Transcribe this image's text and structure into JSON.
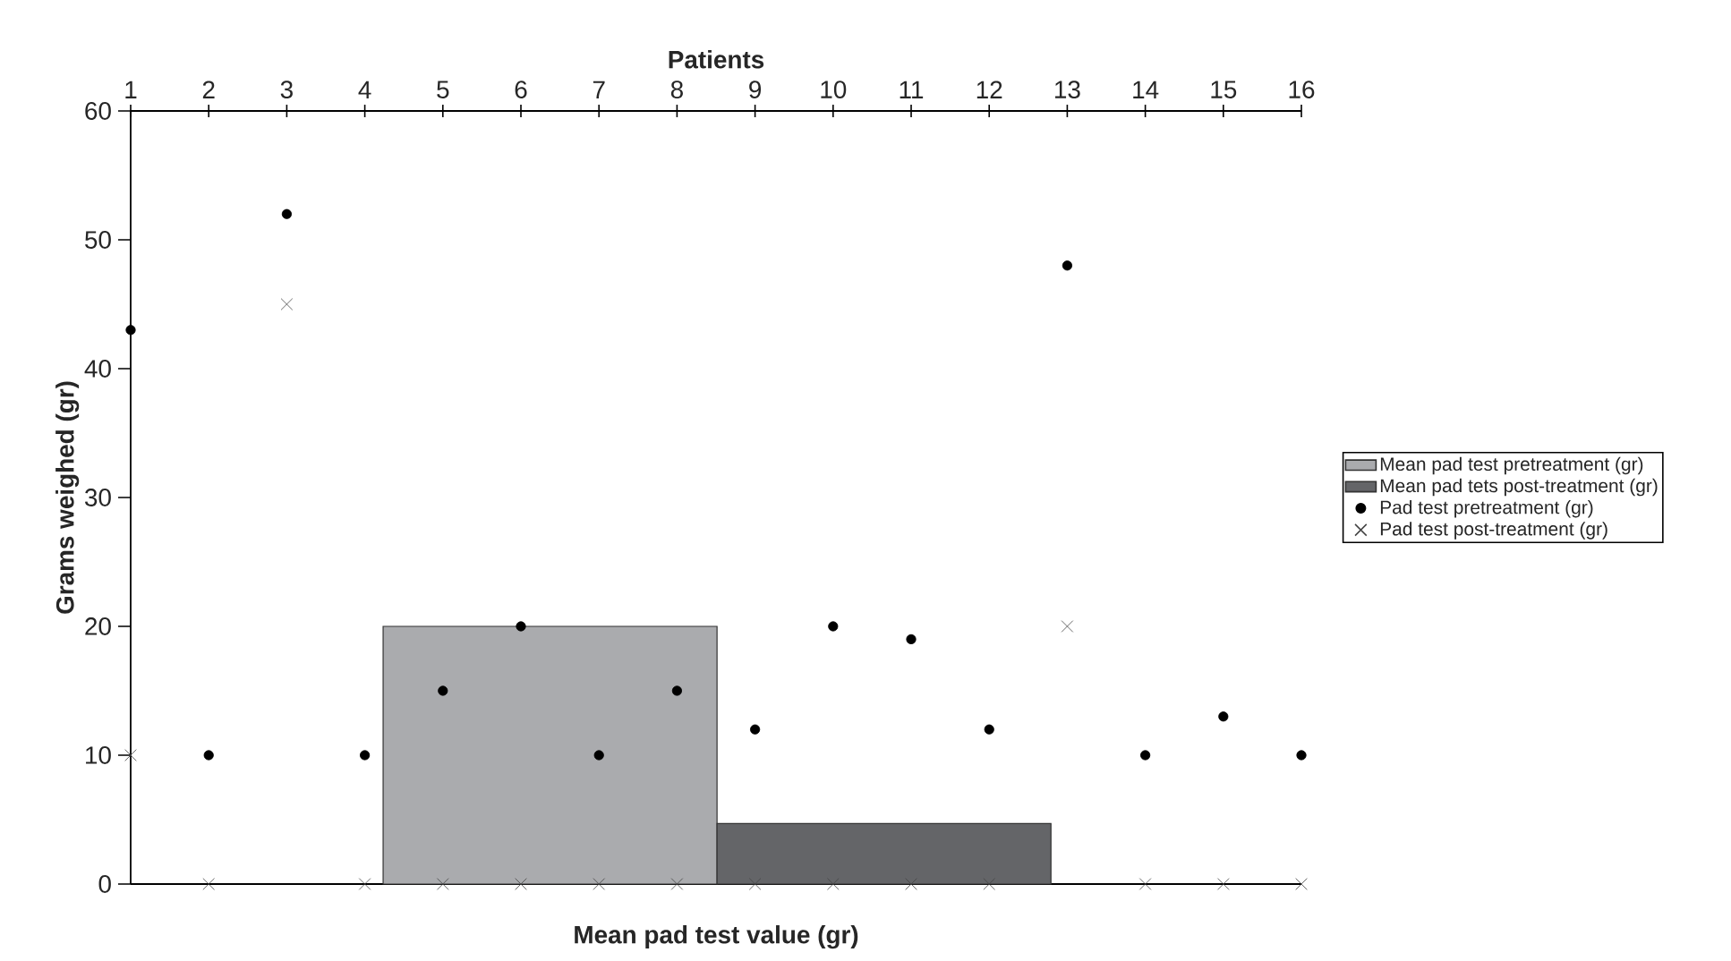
{
  "chart_data": {
    "type": "bar",
    "xlabel": "Mean pad test value (gr)",
    "ylabel": "Grams weighed (gr)",
    "x2label": "Patients",
    "categories": [
      null,
      null
    ],
    "series": [
      {
        "name": "Mean pad test pretreatment (gr)",
        "color": "#aaabae",
        "values": [
          20,
          null
        ]
      },
      {
        "name": "Mean pad tets post-treatment (gr)",
        "color": "#646568",
        "values": [
          null,
          4.7
        ]
      },
      {
        "name": "Pad test pretreatment (gr)",
        "type": "scatter",
        "axis": "x2",
        "marker": "circle",
        "color": "#000000",
        "x": [
          1,
          2,
          3,
          4,
          5,
          6,
          7,
          8,
          9,
          10,
          11,
          12,
          13,
          14,
          15,
          16
        ],
        "values": [
          43,
          10,
          52,
          10,
          15,
          20,
          10,
          15,
          12,
          20,
          19,
          12,
          48,
          10,
          13,
          10
        ]
      },
      {
        "name": "Pad test post-treatment (gr)",
        "type": "scatter",
        "axis": "x2",
        "marker": "cross",
        "color": "#444444",
        "x": [
          1,
          2,
          3,
          4,
          5,
          6,
          7,
          8,
          9,
          10,
          11,
          12,
          13,
          14,
          15,
          16
        ],
        "values": [
          10,
          0,
          45,
          0,
          0,
          0,
          0,
          0,
          0,
          0,
          0,
          0,
          20,
          0,
          0,
          0
        ]
      }
    ],
    "ylim": [
      0,
      60
    ],
    "yticks": [
      0,
      10,
      20,
      30,
      40,
      50,
      60
    ],
    "x2lim": [
      1,
      16
    ],
    "x2ticks": [
      1,
      2,
      3,
      4,
      5,
      6,
      7,
      8,
      9,
      10,
      11,
      12,
      13,
      14,
      15,
      16
    ],
    "legend": "right"
  }
}
